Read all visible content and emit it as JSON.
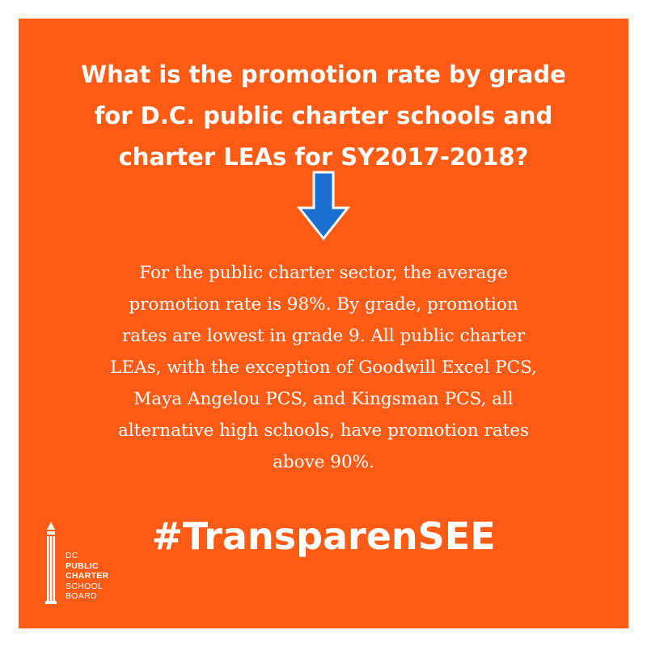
{
  "colors": {
    "card_background": "#ff5b14",
    "text": "#ffffff",
    "arrow_fill": "#1a6fd1",
    "arrow_outline": "#ffffff"
  },
  "heading": {
    "lines": [
      "What is the promotion rate by grade",
      "for D.C. public charter schools and",
      "charter LEAs for SY2017-2018?"
    ]
  },
  "arrow": {
    "icon": "arrow-down-icon"
  },
  "body": {
    "lines": [
      "For the public charter sector, the average",
      "promotion rate is 98%. By grade, promotion",
      "rates are lowest in grade 9. All public charter",
      "LEAs, with the exception of Goodwill Excel PCS,",
      "Maya Angelou PCS, and Kingsman PCS, all",
      "alternative high schools, have promotion rates",
      "above 90%."
    ]
  },
  "hashtag": "#TransparenSEE",
  "logo": {
    "icon": "pencil-logo-icon",
    "lines": [
      "DC",
      "PUBLIC",
      "CHARTER",
      "SCHOOL",
      "BOARD"
    ]
  }
}
